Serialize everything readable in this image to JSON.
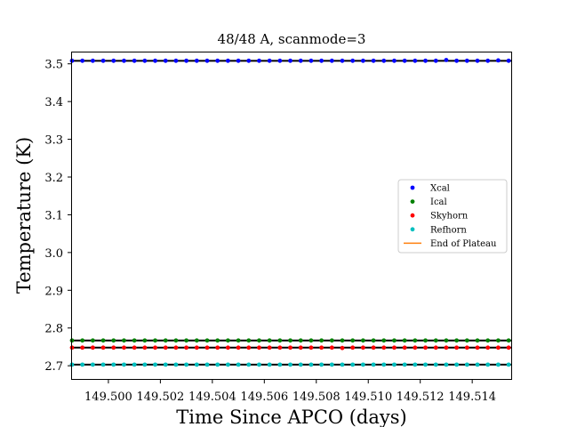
{
  "chart_data": {
    "type": "scatter",
    "title": "48/48 A, scanmode=3",
    "xlabel": "Time Since APCO (days)",
    "ylabel": "Temperature (K)",
    "xlim": [
      149.4986,
      149.5155
    ],
    "ylim": [
      2.665,
      3.53
    ],
    "xticks": [
      {
        "value": 149.5,
        "label": "149.500"
      },
      {
        "value": 149.502,
        "label": "149.502"
      },
      {
        "value": 149.504,
        "label": "149.504"
      },
      {
        "value": 149.506,
        "label": "149.506"
      },
      {
        "value": 149.508,
        "label": "149.508"
      },
      {
        "value": 149.51,
        "label": "149.510"
      },
      {
        "value": 149.512,
        "label": "149.512"
      },
      {
        "value": 149.514,
        "label": "149.514"
      }
    ],
    "yticks": [
      {
        "value": 2.7,
        "label": "2.7"
      },
      {
        "value": 2.8,
        "label": "2.8"
      },
      {
        "value": 2.9,
        "label": "2.9"
      },
      {
        "value": 3.0,
        "label": "3.0"
      },
      {
        "value": 3.1,
        "label": "3.1"
      },
      {
        "value": 3.2,
        "label": "3.2"
      },
      {
        "value": 3.3,
        "label": "3.3"
      },
      {
        "value": 3.4,
        "label": "3.4"
      },
      {
        "value": 3.5,
        "label": "3.5"
      }
    ],
    "grid": false,
    "legend_position": "center-right",
    "x_points": [
      149.4986,
      149.499,
      149.4994,
      149.4998,
      149.5002,
      149.5006,
      149.501,
      149.5014,
      149.5018,
      149.5022,
      149.5026,
      149.503,
      149.5034,
      149.5038,
      149.5042,
      149.5046,
      149.505,
      149.5054,
      149.5058,
      149.5062,
      149.5066,
      149.507,
      149.5074,
      149.5078,
      149.5082,
      149.5086,
      149.509,
      149.5094,
      149.5098,
      149.5102,
      149.5106,
      149.511,
      149.5114,
      149.5118,
      149.5122,
      149.5126,
      149.513,
      149.5134,
      149.5138,
      149.5142,
      149.5146,
      149.515,
      149.5154
    ],
    "series": [
      {
        "name": "Xcal",
        "color": "#0000ff",
        "baseline": 3.508,
        "values": [
          3.508,
          3.508,
          3.508,
          3.508,
          3.508,
          3.508,
          3.508,
          3.508,
          3.508,
          3.508,
          3.508,
          3.508,
          3.508,
          3.508,
          3.508,
          3.508,
          3.508,
          3.508,
          3.508,
          3.508,
          3.508,
          3.508,
          3.508,
          3.508,
          3.508,
          3.508,
          3.508,
          3.508,
          3.508,
          3.508,
          3.508,
          3.508,
          3.508,
          3.508,
          3.508,
          3.508,
          3.51,
          3.508,
          3.508,
          3.508,
          3.508,
          3.509,
          3.508
        ]
      },
      {
        "name": "Ical",
        "color": "#008000",
        "baseline": 2.767,
        "values": [
          2.767,
          2.767,
          2.767,
          2.767,
          2.767,
          2.767,
          2.767,
          2.767,
          2.767,
          2.767,
          2.767,
          2.767,
          2.767,
          2.767,
          2.767,
          2.767,
          2.767,
          2.767,
          2.767,
          2.767,
          2.767,
          2.767,
          2.767,
          2.767,
          2.767,
          2.767,
          2.767,
          2.767,
          2.767,
          2.767,
          2.767,
          2.767,
          2.767,
          2.767,
          2.767,
          2.767,
          2.767,
          2.767,
          2.767,
          2.767,
          2.767,
          2.767,
          2.767
        ]
      },
      {
        "name": "Skyhorn",
        "color": "#ff0000",
        "baseline": 2.748,
        "values": [
          2.748,
          2.748,
          2.748,
          2.748,
          2.748,
          2.748,
          2.748,
          2.748,
          2.748,
          2.748,
          2.748,
          2.748,
          2.748,
          2.748,
          2.748,
          2.748,
          2.748,
          2.748,
          2.748,
          2.748,
          2.748,
          2.748,
          2.748,
          2.748,
          2.748,
          2.748,
          2.747,
          2.748,
          2.748,
          2.748,
          2.748,
          2.748,
          2.748,
          2.748,
          2.748,
          2.748,
          2.748,
          2.748,
          2.748,
          2.748,
          2.748,
          2.748,
          2.748
        ]
      },
      {
        "name": "Refhorn",
        "color": "#00bfbf",
        "baseline": 2.703,
        "values": [
          2.703,
          2.703,
          2.703,
          2.703,
          2.703,
          2.703,
          2.703,
          2.703,
          2.703,
          2.703,
          2.703,
          2.703,
          2.703,
          2.703,
          2.703,
          2.703,
          2.703,
          2.703,
          2.703,
          2.703,
          2.703,
          2.703,
          2.703,
          2.703,
          2.703,
          2.703,
          2.703,
          2.703,
          2.703,
          2.703,
          2.703,
          2.703,
          2.703,
          2.703,
          2.703,
          2.703,
          2.703,
          2.703,
          2.703,
          2.703,
          2.703,
          2.703,
          2.703
        ]
      }
    ],
    "legend": [
      {
        "label": "Xcal",
        "kind": "marker",
        "color": "#0000ff"
      },
      {
        "label": "Ical",
        "kind": "marker",
        "color": "#008000"
      },
      {
        "label": "Skyhorn",
        "kind": "marker",
        "color": "#ff0000"
      },
      {
        "label": "Refhorn",
        "kind": "marker",
        "color": "#00bfbf"
      },
      {
        "label": "End of Plateau",
        "kind": "line",
        "color": "#ff7f0e"
      }
    ]
  }
}
